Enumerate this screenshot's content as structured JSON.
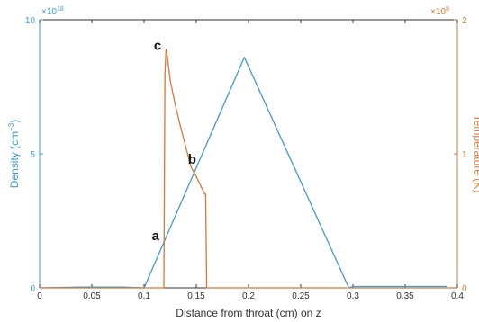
{
  "colors": {
    "density": "#3d9bd3",
    "temperature": "#d6793a",
    "axis": "#333333",
    "annotation": "#111111",
    "baseline": "#888888"
  },
  "chart_data": {
    "type": "line",
    "xlabel": "Distance from throat (cm) on z",
    "xlim": [
      0,
      0.4
    ],
    "xticks": [
      "0",
      "0.05",
      "0.1",
      "0.15",
      "0.2",
      "0.25",
      "0.3",
      "0.35",
      "0.4"
    ],
    "y_left": {
      "label": "Density (cm",
      "label_sup": "−3",
      "label_end": ")",
      "lim": [
        0,
        10
      ],
      "ticks": [
        "0",
        "5",
        "10"
      ],
      "exponent_base": "×10",
      "exponent_power": "18"
    },
    "y_right": {
      "label": "Temperature (K)",
      "lim": [
        0,
        2
      ],
      "ticks": [
        "0",
        "1",
        "2"
      ],
      "exponent_base": "×10",
      "exponent_power": "8"
    },
    "grid": false,
    "series": [
      {
        "axis": "left",
        "x": [
          0,
          0.04,
          0.08,
          0.1,
          0.196,
          0.296,
          0.3,
          0.39
        ],
        "y": [
          0,
          0.03,
          0.03,
          0,
          8.6,
          0,
          0.05,
          0.05
        ]
      },
      {
        "axis": "right",
        "x": [
          0,
          0.119,
          0.12,
          0.121,
          0.122,
          0.125,
          0.13,
          0.135,
          0.14,
          0.145,
          0.15,
          0.155,
          0.158,
          0.159,
          0.16,
          0.4
        ],
        "y": [
          0,
          0,
          1.6,
          1.78,
          1.75,
          1.55,
          1.36,
          1.2,
          1.05,
          0.9,
          0.83,
          0.75,
          0.7,
          0.7,
          0,
          0
        ]
      }
    ],
    "annotations": [
      {
        "text": "a",
        "x": 0.111,
        "y_left": 1.95
      },
      {
        "text": "b",
        "x": 0.146,
        "y_left": 4.8
      },
      {
        "text": "c",
        "x": 0.113,
        "y_left": 9.05
      }
    ]
  }
}
